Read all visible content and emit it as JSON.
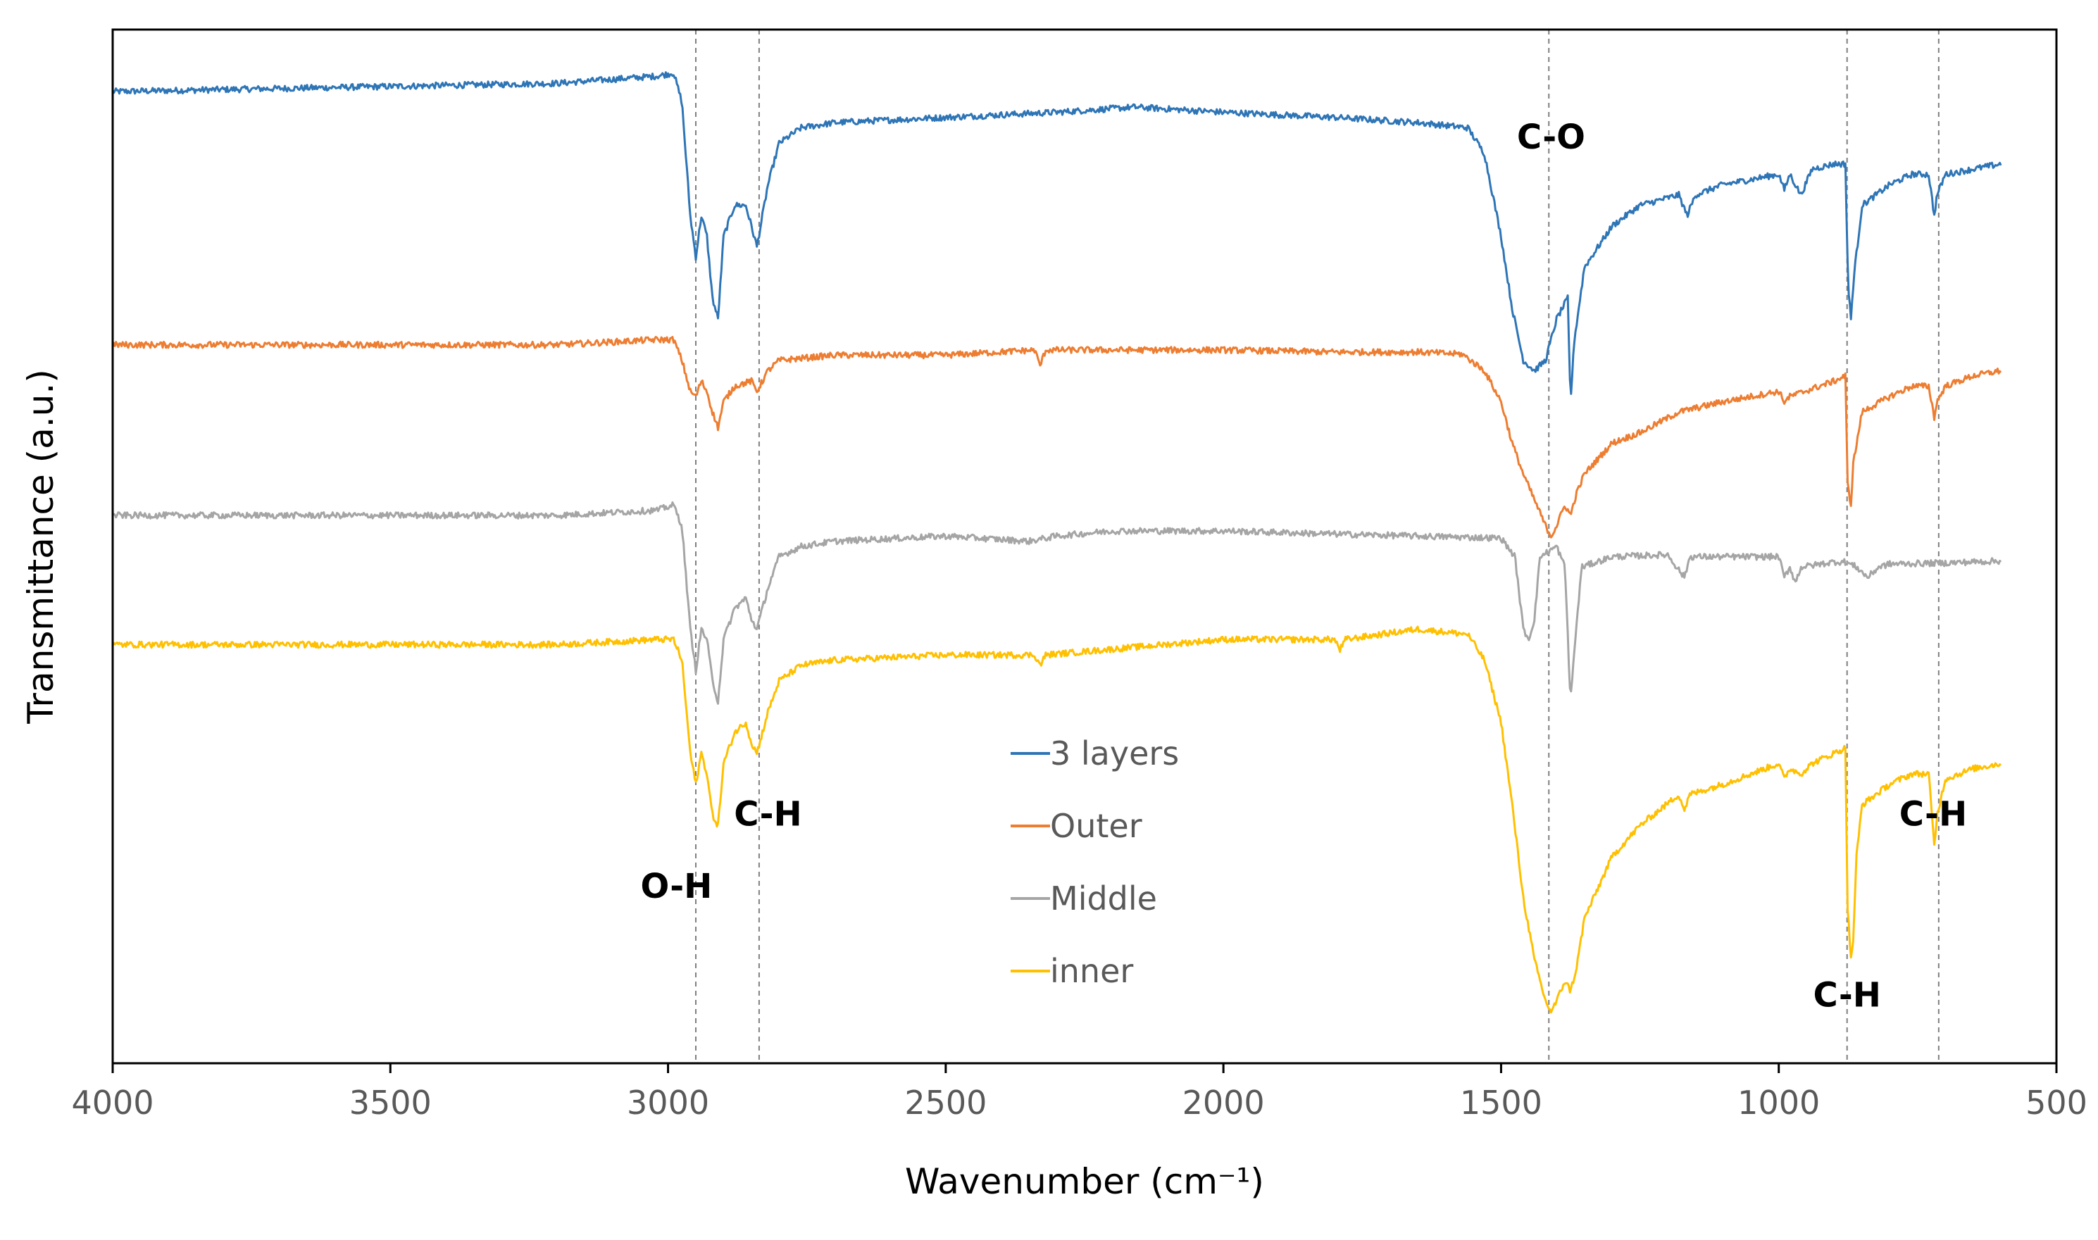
{
  "chart_data": {
    "type": "line",
    "title": "",
    "xlabel": "Wavenumber (cm⁻¹)",
    "ylabel": "Transmittance (a.u.)",
    "xlim": [
      4000,
      500
    ],
    "ylim": [
      0,
      1
    ],
    "x_ticks": [
      "4000",
      "3500",
      "3000",
      "2500",
      "2000",
      "1500",
      "1000",
      "500"
    ],
    "y_ticks_shown": false,
    "grid": false,
    "legend_position": "center-bottom",
    "series": [
      {
        "name": "3 layers",
        "color": "#2E75B6",
        "baseline": 0.95,
        "points": [
          [
            4000,
            0.94
          ],
          [
            3500,
            0.945
          ],
          [
            3200,
            0.948
          ],
          [
            3020,
            0.955
          ],
          [
            2990,
            0.958
          ],
          [
            2975,
            0.93
          ],
          [
            2960,
            0.82
          ],
          [
            2950,
            0.78
          ],
          [
            2940,
            0.82
          ],
          [
            2930,
            0.8
          ],
          [
            2920,
            0.74
          ],
          [
            2910,
            0.72
          ],
          [
            2900,
            0.8
          ],
          [
            2880,
            0.83
          ],
          [
            2860,
            0.83
          ],
          [
            2850,
            0.81
          ],
          [
            2840,
            0.79
          ],
          [
            2820,
            0.85
          ],
          [
            2800,
            0.89
          ],
          [
            2760,
            0.905
          ],
          [
            2700,
            0.91
          ],
          [
            2500,
            0.915
          ],
          [
            2300,
            0.92
          ],
          [
            2160,
            0.925
          ],
          [
            2000,
            0.92
          ],
          [
            1800,
            0.915
          ],
          [
            1650,
            0.91
          ],
          [
            1560,
            0.905
          ],
          [
            1530,
            0.88
          ],
          [
            1500,
            0.8
          ],
          [
            1480,
            0.73
          ],
          [
            1460,
            0.68
          ],
          [
            1440,
            0.67
          ],
          [
            1420,
            0.68
          ],
          [
            1400,
            0.72
          ],
          [
            1380,
            0.74
          ],
          [
            1375,
            0.64
          ],
          [
            1368,
            0.7
          ],
          [
            1350,
            0.77
          ],
          [
            1300,
            0.81
          ],
          [
            1250,
            0.83
          ],
          [
            1180,
            0.84
          ],
          [
            1165,
            0.82
          ],
          [
            1150,
            0.84
          ],
          [
            1100,
            0.85
          ],
          [
            1000,
            0.86
          ],
          [
            990,
            0.845
          ],
          [
            980,
            0.86
          ],
          [
            960,
            0.84
          ],
          [
            940,
            0.865
          ],
          [
            900,
            0.87
          ],
          [
            880,
            0.87
          ],
          [
            875,
            0.75
          ],
          [
            870,
            0.72
          ],
          [
            865,
            0.76
          ],
          [
            850,
            0.83
          ],
          [
            800,
            0.85
          ],
          [
            760,
            0.86
          ],
          [
            730,
            0.86
          ],
          [
            720,
            0.82
          ],
          [
            715,
            0.84
          ],
          [
            700,
            0.86
          ],
          [
            650,
            0.865
          ],
          [
            600,
            0.87
          ]
        ]
      },
      {
        "name": "Outer",
        "color": "#ED7D31",
        "baseline": 0.72,
        "points": [
          [
            4000,
            0.695
          ],
          [
            3500,
            0.695
          ],
          [
            3200,
            0.695
          ],
          [
            3020,
            0.7
          ],
          [
            2990,
            0.7
          ],
          [
            2975,
            0.68
          ],
          [
            2960,
            0.65
          ],
          [
            2950,
            0.645
          ],
          [
            2940,
            0.66
          ],
          [
            2930,
            0.65
          ],
          [
            2920,
            0.63
          ],
          [
            2910,
            0.615
          ],
          [
            2900,
            0.64
          ],
          [
            2880,
            0.655
          ],
          [
            2850,
            0.66
          ],
          [
            2840,
            0.65
          ],
          [
            2820,
            0.67
          ],
          [
            2800,
            0.68
          ],
          [
            2700,
            0.685
          ],
          [
            2500,
            0.685
          ],
          [
            2340,
            0.69
          ],
          [
            2330,
            0.675
          ],
          [
            2320,
            0.69
          ],
          [
            2100,
            0.69
          ],
          [
            2000,
            0.69
          ],
          [
            1800,
            0.688
          ],
          [
            1650,
            0.688
          ],
          [
            1570,
            0.686
          ],
          [
            1530,
            0.67
          ],
          [
            1500,
            0.64
          ],
          [
            1480,
            0.6
          ],
          [
            1460,
            0.57
          ],
          [
            1440,
            0.545
          ],
          [
            1420,
            0.52
          ],
          [
            1410,
            0.51
          ],
          [
            1400,
            0.52
          ],
          [
            1385,
            0.54
          ],
          [
            1375,
            0.53
          ],
          [
            1365,
            0.55
          ],
          [
            1350,
            0.57
          ],
          [
            1300,
            0.6
          ],
          [
            1250,
            0.61
          ],
          [
            1180,
            0.63
          ],
          [
            1100,
            0.64
          ],
          [
            1000,
            0.65
          ],
          [
            990,
            0.64
          ],
          [
            980,
            0.645
          ],
          [
            900,
            0.66
          ],
          [
            880,
            0.665
          ],
          [
            876,
            0.56
          ],
          [
            870,
            0.54
          ],
          [
            866,
            0.58
          ],
          [
            850,
            0.63
          ],
          [
            800,
            0.645
          ],
          [
            760,
            0.655
          ],
          [
            730,
            0.655
          ],
          [
            720,
            0.625
          ],
          [
            715,
            0.64
          ],
          [
            700,
            0.655
          ],
          [
            650,
            0.665
          ],
          [
            600,
            0.67
          ]
        ]
      },
      {
        "name": "Middle",
        "color": "#A5A5A5",
        "baseline": 0.54,
        "points": [
          [
            4000,
            0.53
          ],
          [
            3500,
            0.53
          ],
          [
            3200,
            0.53
          ],
          [
            3020,
            0.535
          ],
          [
            2990,
            0.54
          ],
          [
            2975,
            0.52
          ],
          [
            2960,
            0.42
          ],
          [
            2950,
            0.38
          ],
          [
            2940,
            0.42
          ],
          [
            2930,
            0.41
          ],
          [
            2920,
            0.37
          ],
          [
            2910,
            0.35
          ],
          [
            2900,
            0.41
          ],
          [
            2880,
            0.44
          ],
          [
            2860,
            0.45
          ],
          [
            2850,
            0.43
          ],
          [
            2840,
            0.42
          ],
          [
            2820,
            0.46
          ],
          [
            2800,
            0.49
          ],
          [
            2760,
            0.5
          ],
          [
            2700,
            0.505
          ],
          [
            2500,
            0.51
          ],
          [
            2350,
            0.505
          ],
          [
            2300,
            0.51
          ],
          [
            2200,
            0.515
          ],
          [
            2000,
            0.515
          ],
          [
            1800,
            0.512
          ],
          [
            1650,
            0.51
          ],
          [
            1500,
            0.508
          ],
          [
            1475,
            0.49
          ],
          [
            1460,
            0.42
          ],
          [
            1450,
            0.41
          ],
          [
            1440,
            0.43
          ],
          [
            1430,
            0.49
          ],
          [
            1400,
            0.5
          ],
          [
            1385,
            0.48
          ],
          [
            1375,
            0.35
          ],
          [
            1368,
            0.4
          ],
          [
            1355,
            0.48
          ],
          [
            1300,
            0.49
          ],
          [
            1200,
            0.492
          ],
          [
            1170,
            0.47
          ],
          [
            1160,
            0.49
          ],
          [
            1100,
            0.49
          ],
          [
            1000,
            0.49
          ],
          [
            990,
            0.47
          ],
          [
            980,
            0.48
          ],
          [
            970,
            0.465
          ],
          [
            960,
            0.48
          ],
          [
            900,
            0.485
          ],
          [
            880,
            0.485
          ],
          [
            860,
            0.48
          ],
          [
            840,
            0.47
          ],
          [
            820,
            0.48
          ],
          [
            800,
            0.483
          ],
          [
            700,
            0.484
          ],
          [
            600,
            0.486
          ]
        ]
      },
      {
        "name": "inner",
        "color": "#FFC000",
        "baseline": 0.41,
        "points": [
          [
            4000,
            0.405
          ],
          [
            3500,
            0.405
          ],
          [
            3200,
            0.405
          ],
          [
            3020,
            0.41
          ],
          [
            2990,
            0.41
          ],
          [
            2975,
            0.39
          ],
          [
            2960,
            0.3
          ],
          [
            2950,
            0.27
          ],
          [
            2940,
            0.3
          ],
          [
            2930,
            0.28
          ],
          [
            2920,
            0.24
          ],
          [
            2910,
            0.23
          ],
          [
            2900,
            0.29
          ],
          [
            2880,
            0.32
          ],
          [
            2860,
            0.33
          ],
          [
            2850,
            0.31
          ],
          [
            2840,
            0.3
          ],
          [
            2820,
            0.34
          ],
          [
            2800,
            0.37
          ],
          [
            2760,
            0.385
          ],
          [
            2700,
            0.39
          ],
          [
            2500,
            0.395
          ],
          [
            2340,
            0.395
          ],
          [
            2330,
            0.385
          ],
          [
            2320,
            0.395
          ],
          [
            2000,
            0.41
          ],
          [
            1800,
            0.41
          ],
          [
            1790,
            0.4
          ],
          [
            1780,
            0.41
          ],
          [
            1650,
            0.42
          ],
          [
            1560,
            0.415
          ],
          [
            1530,
            0.39
          ],
          [
            1500,
            0.33
          ],
          [
            1480,
            0.25
          ],
          [
            1460,
            0.16
          ],
          [
            1440,
            0.1
          ],
          [
            1420,
            0.06
          ],
          [
            1410,
            0.05
          ],
          [
            1400,
            0.06
          ],
          [
            1385,
            0.08
          ],
          [
            1375,
            0.07
          ],
          [
            1365,
            0.09
          ],
          [
            1350,
            0.14
          ],
          [
            1300,
            0.2
          ],
          [
            1250,
            0.23
          ],
          [
            1180,
            0.26
          ],
          [
            1170,
            0.245
          ],
          [
            1160,
            0.26
          ],
          [
            1100,
            0.27
          ],
          [
            1000,
            0.29
          ],
          [
            990,
            0.275
          ],
          [
            980,
            0.285
          ],
          [
            960,
            0.28
          ],
          [
            940,
            0.29
          ],
          [
            900,
            0.3
          ],
          [
            880,
            0.305
          ],
          [
            876,
            0.15
          ],
          [
            870,
            0.1
          ],
          [
            866,
            0.12
          ],
          [
            860,
            0.2
          ],
          [
            850,
            0.25
          ],
          [
            800,
            0.27
          ],
          [
            760,
            0.28
          ],
          [
            730,
            0.28
          ],
          [
            720,
            0.21
          ],
          [
            715,
            0.24
          ],
          [
            700,
            0.275
          ],
          [
            650,
            0.285
          ],
          [
            600,
            0.29
          ]
        ]
      }
    ],
    "reference_lines": [
      2950,
      2836,
      1414,
      877,
      712
    ],
    "annotations": [
      {
        "text": "O-H",
        "x": 2985,
        "y": 0.16
      },
      {
        "text": "C-H",
        "x": 2820,
        "y": 0.23
      },
      {
        "text": "C-O",
        "x": 1410,
        "y": 0.885
      },
      {
        "text": "C-H",
        "x": 877,
        "y": 0.055
      },
      {
        "text": "C-H",
        "x": 722,
        "y": 0.23
      }
    ]
  }
}
